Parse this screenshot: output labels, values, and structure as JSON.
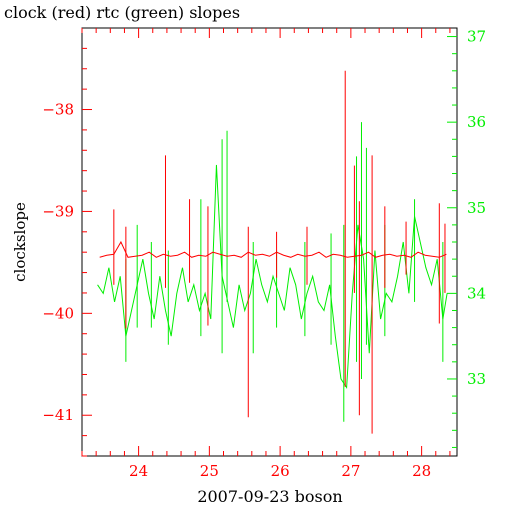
{
  "chart_data": {
    "type": "line",
    "title": "clock (red) rtc (green) slopes",
    "xlabel": "2007-09-23 boson",
    "ylabel_left": "clockslope",
    "xlim": [
      23.2,
      28.5
    ],
    "ylim_left": [
      -41.4,
      -37.2
    ],
    "ylim_right": [
      32.1,
      37.1
    ],
    "x_ticks": [
      24,
      25,
      26,
      27,
      28
    ],
    "y_ticks_left": [
      -38,
      -39,
      -40,
      -41
    ],
    "y_ticks_right": [
      33,
      34,
      35,
      36,
      37
    ],
    "colors": {
      "clock": "#ff0000",
      "rtc": "#00ee00",
      "axis": "#000000"
    },
    "series": [
      {
        "color": "red",
        "axis": "left",
        "baseline": -39.43,
        "x": [
          23.45,
          23.55,
          23.65,
          23.75,
          23.85,
          23.95,
          24.05,
          24.15,
          24.25,
          24.35,
          24.45,
          24.55,
          24.65,
          24.75,
          24.85,
          24.95,
          25.05,
          25.15,
          25.25,
          25.35,
          25.45,
          25.55,
          25.65,
          25.75,
          25.85,
          25.95,
          26.05,
          26.15,
          26.25,
          26.35,
          26.45,
          26.55,
          26.65,
          26.75,
          26.85,
          26.95,
          27.05,
          27.15,
          27.25,
          27.35,
          27.45,
          27.55,
          27.65,
          27.75,
          27.85,
          27.95,
          28.05,
          28.15,
          28.25,
          28.35
        ],
        "y": [
          -39.45,
          -39.43,
          -39.42,
          -39.3,
          -39.45,
          -39.44,
          -39.43,
          -39.4,
          -39.45,
          -39.42,
          -39.44,
          -39.43,
          -39.4,
          -39.45,
          -39.43,
          -39.44,
          -39.4,
          -39.42,
          -39.44,
          -39.43,
          -39.45,
          -39.4,
          -39.43,
          -39.42,
          -39.44,
          -39.4,
          -39.43,
          -39.45,
          -39.42,
          -39.44,
          -39.43,
          -39.4,
          -39.45,
          -39.42,
          -39.43,
          -39.45,
          -39.44,
          -39.43,
          -39.4,
          -39.45,
          -39.43,
          -39.42,
          -39.44,
          -39.43,
          -39.45,
          -39.4,
          -39.43,
          -39.44,
          -39.45,
          -39.42
        ],
        "spikes": [
          {
            "x": 23.65,
            "top": -38.98,
            "bottom": -39.72
          },
          {
            "x": 23.82,
            "top": -39.15,
            "bottom": -40.15
          },
          {
            "x": 24.38,
            "top": -38.45,
            "bottom": -39.75
          },
          {
            "x": 24.72,
            "top": -38.88,
            "bottom": -39.7
          },
          {
            "x": 24.98,
            "top": -38.95,
            "bottom": -40.12
          },
          {
            "x": 25.55,
            "top": -39.15,
            "bottom": -41.02
          },
          {
            "x": 25.95,
            "top": -39.2,
            "bottom": -39.65
          },
          {
            "x": 26.38,
            "top": -39.15,
            "bottom": -39.72
          },
          {
            "x": 26.92,
            "top": -37.62,
            "bottom": -40.72
          },
          {
            "x": 27.05,
            "top": -38.55,
            "bottom": -39.8
          },
          {
            "x": 27.12,
            "top": -38.9,
            "bottom": -41.0
          },
          {
            "x": 27.3,
            "top": -38.45,
            "bottom": -41.18
          },
          {
            "x": 27.48,
            "top": -38.95,
            "bottom": -39.75
          },
          {
            "x": 27.78,
            "top": -39.1,
            "bottom": -39.62
          },
          {
            "x": 28.25,
            "top": -38.92,
            "bottom": -40.1
          },
          {
            "x": 28.33,
            "top": -39.12,
            "bottom": -39.8
          }
        ]
      },
      {
        "color": "green",
        "axis": "right",
        "x": [
          23.42,
          23.5,
          23.58,
          23.66,
          23.74,
          23.82,
          23.9,
          23.98,
          24.06,
          24.14,
          24.22,
          24.3,
          24.38,
          24.46,
          24.54,
          24.62,
          24.7,
          24.78,
          24.86,
          24.94,
          25.02,
          25.1,
          25.18,
          25.26,
          25.34,
          25.42,
          25.5,
          25.58,
          25.66,
          25.74,
          25.82,
          25.9,
          25.98,
          26.06,
          26.14,
          26.22,
          26.3,
          26.38,
          26.46,
          26.54,
          26.62,
          26.7,
          26.78,
          26.86,
          26.94,
          27.02,
          27.1,
          27.18,
          27.26,
          27.34,
          27.42,
          27.5,
          27.58,
          27.66,
          27.74,
          27.82,
          27.9,
          27.98,
          28.06,
          28.14,
          28.22,
          28.3,
          28.36
        ],
        "y": [
          34.1,
          34.0,
          34.3,
          33.9,
          34.2,
          33.5,
          33.8,
          34.1,
          34.4,
          34.0,
          33.7,
          34.2,
          33.8,
          33.5,
          34.0,
          34.3,
          33.9,
          34.1,
          33.8,
          34.0,
          33.7,
          35.5,
          34.2,
          33.9,
          33.6,
          34.1,
          33.8,
          34.0,
          34.4,
          34.1,
          33.9,
          34.2,
          34.0,
          33.8,
          34.3,
          34.1,
          33.7,
          34.0,
          34.2,
          33.9,
          33.8,
          34.1,
          33.5,
          33.0,
          32.9,
          34.0,
          34.8,
          34.4,
          33.3,
          34.5,
          33.7,
          34.0,
          33.9,
          34.2,
          34.6,
          34.0,
          34.9,
          34.6,
          34.3,
          34.1,
          34.4,
          33.7,
          34.0
        ],
        "spikes": [
          {
            "x": 23.82,
            "top": 34.4,
            "bottom": 33.2
          },
          {
            "x": 23.98,
            "top": 34.8,
            "bottom": 33.6
          },
          {
            "x": 24.18,
            "top": 34.6,
            "bottom": 33.6
          },
          {
            "x": 24.42,
            "top": 34.5,
            "bottom": 33.4
          },
          {
            "x": 24.88,
            "top": 35.1,
            "bottom": 33.5
          },
          {
            "x": 25.18,
            "top": 35.8,
            "bottom": 33.3
          },
          {
            "x": 25.25,
            "top": 35.9,
            "bottom": 33.9
          },
          {
            "x": 25.62,
            "top": 34.6,
            "bottom": 33.3
          },
          {
            "x": 25.95,
            "top": 34.5,
            "bottom": 33.6
          },
          {
            "x": 26.35,
            "top": 34.6,
            "bottom": 33.5
          },
          {
            "x": 26.72,
            "top": 34.7,
            "bottom": 33.4
          },
          {
            "x": 26.9,
            "top": 34.8,
            "bottom": 32.5
          },
          {
            "x": 27.08,
            "top": 35.6,
            "bottom": 33.2
          },
          {
            "x": 27.15,
            "top": 36.0,
            "bottom": 33.0
          },
          {
            "x": 27.22,
            "top": 35.7,
            "bottom": 33.4
          },
          {
            "x": 27.48,
            "top": 34.8,
            "bottom": 33.5
          },
          {
            "x": 27.9,
            "top": 35.1,
            "bottom": 33.9
          },
          {
            "x": 28.3,
            "top": 34.6,
            "bottom": 33.2
          }
        ]
      }
    ]
  }
}
